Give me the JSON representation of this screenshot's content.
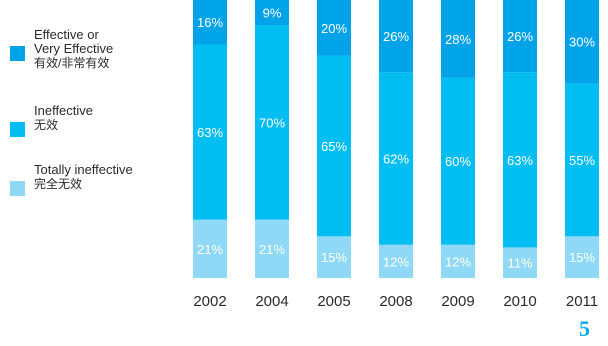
{
  "legend": {
    "items": [
      {
        "en": "Effective or\nVery Effective",
        "cn": "有效/非常有效",
        "color": "#00a2e8"
      },
      {
        "en": "Ineffective",
        "cn": "无效",
        "color": "#00bdf2"
      },
      {
        "en": "Totally ineffective",
        "cn": "完全无效",
        "color": "#8fd9f6"
      }
    ]
  },
  "chart_data": {
    "type": "bar",
    "stacked": true,
    "orientation": "vertical",
    "categories": [
      "2002",
      "2004",
      "2005",
      "2008",
      "2009",
      "2010",
      "2011"
    ],
    "series": [
      {
        "name": "Totally ineffective 完全无效",
        "color": "#8fd9f6",
        "values": [
          21,
          21,
          15,
          12,
          12,
          11,
          15
        ],
        "labels": [
          "21%",
          "21%",
          "15%",
          "12%",
          "12%",
          "11%",
          "15%"
        ]
      },
      {
        "name": "Ineffective 无效",
        "color": "#00bdf2",
        "values": [
          63,
          70,
          65,
          62,
          60,
          63,
          55
        ],
        "labels": [
          "63%",
          "70%",
          "65%",
          "62%",
          "60%",
          "63%",
          "55%"
        ]
      },
      {
        "name": "Effective or Very Effective 有效/非常有效",
        "color": "#00a2e8",
        "values": [
          16,
          9,
          20,
          26,
          28,
          26,
          30
        ],
        "labels": [
          "16%",
          "9%",
          "20%",
          "26%",
          "28%",
          "26%",
          "30%"
        ]
      }
    ],
    "ylim": [
      0,
      100
    ],
    "grid": false,
    "legend_position": "left"
  },
  "page_number": "5"
}
